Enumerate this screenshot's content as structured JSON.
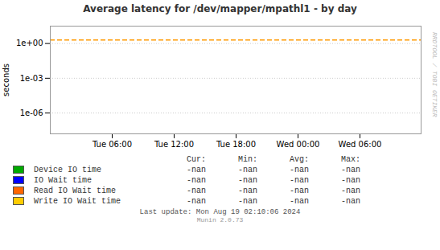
{
  "chart_data": {
    "type": "line",
    "title": "Average latency for /dev/mapper/mpathl1  -  by day",
    "ylabel": "seconds",
    "categories": [
      "Tue 06:00",
      "Tue 12:00",
      "Tue 18:00",
      "Wed 00:00",
      "Wed 06:00"
    ],
    "log": "y",
    "ylim": [
      1.5848931924611106e-08,
      31.622776601683793
    ],
    "yticks": [
      {
        "value": 1e-06,
        "label": "1e-06"
      },
      {
        "value": 0.001,
        "label": "1e-03"
      },
      {
        "value": 1,
        "label": "1e+00"
      }
    ],
    "grid": true,
    "hlines": [
      {
        "y": 2.0,
        "color": "#ff9900",
        "line_style": "dashed"
      }
    ],
    "stats_header": [
      "Cur:",
      "Min:",
      "Avg:",
      "Max:"
    ],
    "series": [
      {
        "name": "Device IO time",
        "color": "#00aa00",
        "values": [
          null,
          null,
          null,
          null,
          null
        ],
        "stats": [
          "-nan",
          "-nan",
          "-nan",
          "-nan"
        ]
      },
      {
        "name": "IO Wait time",
        "color": "#0000ff",
        "values": [
          null,
          null,
          null,
          null,
          null
        ],
        "stats": [
          "-nan",
          "-nan",
          "-nan",
          "-nan"
        ]
      },
      {
        "name": "Read IO Wait time",
        "color": "#ff6600",
        "values": [
          null,
          null,
          null,
          null,
          null
        ],
        "stats": [
          "-nan",
          "-nan",
          "-nan",
          "-nan"
        ]
      },
      {
        "name": "Write IO Wait time",
        "color": "#ffcc00",
        "values": [
          null,
          null,
          null,
          null,
          null
        ],
        "stats": [
          "-nan",
          "-nan",
          "-nan",
          "-nan"
        ]
      }
    ],
    "annotations": [
      "RRDTOOL / TOBI OETIKER",
      "Last update: Mon Aug 19 02:10:06 2024",
      "Munin 2.0.73"
    ]
  }
}
